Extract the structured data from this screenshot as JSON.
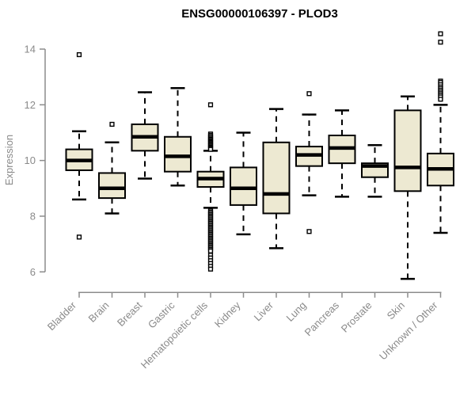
{
  "colors": {
    "box_fill": "#EDE9D2",
    "box_stroke": "#000000",
    "median": "#000000",
    "whisker": "#000000",
    "axis": "#8c8c8c",
    "tick_text": "#8a8a8a",
    "title_text": "#000000",
    "background": "#ffffff"
  },
  "chart_data": {
    "type": "boxplot",
    "title": "ENSG00000106397 - PLOD3",
    "xlabel": "",
    "ylabel": "Expression",
    "yticks": [
      6,
      8,
      10,
      12,
      14
    ],
    "ylim": [
      5.5,
      14.8
    ],
    "grid": false,
    "legend": "none",
    "categories": [
      "Bladder",
      "Brain",
      "Breast",
      "Gastric",
      "Hematopoietic cells",
      "Kidney",
      "Liver",
      "Lung",
      "Pancreas",
      "Prostate",
      "Skin",
      "Unknown / Other"
    ],
    "boxes": [
      {
        "category": "Bladder",
        "whisker_low": 8.6,
        "q1": 9.65,
        "median": 10.0,
        "q3": 10.4,
        "whisker_high": 11.05,
        "outliers": [
          13.8,
          7.25
        ]
      },
      {
        "category": "Brain",
        "whisker_low": 8.1,
        "q1": 8.65,
        "median": 9.0,
        "q3": 9.55,
        "whisker_high": 10.65,
        "outliers": [
          11.3
        ]
      },
      {
        "category": "Breast",
        "whisker_low": 9.35,
        "q1": 10.35,
        "median": 10.85,
        "q3": 11.3,
        "whisker_high": 12.45,
        "outliers": []
      },
      {
        "category": "Gastric",
        "whisker_low": 9.1,
        "q1": 9.6,
        "median": 10.15,
        "q3": 10.85,
        "whisker_high": 12.6,
        "outliers": []
      },
      {
        "category": "Hematopoietic cells",
        "whisker_low": 8.3,
        "q1": 9.05,
        "median": 9.35,
        "q3": 9.6,
        "whisker_high": 10.35,
        "outliers": [
          12.0,
          10.95,
          10.9,
          10.85,
          10.8,
          10.76,
          10.72,
          10.68,
          10.64,
          10.6,
          10.56,
          10.52,
          10.48,
          10.44,
          10.4,
          8.2,
          8.15,
          8.1,
          8.05,
          8.0,
          7.95,
          7.9,
          7.85,
          7.8,
          7.75,
          7.7,
          7.65,
          7.6,
          7.55,
          7.5,
          7.45,
          7.4,
          7.35,
          7.3,
          7.25,
          7.2,
          7.15,
          7.1,
          7.05,
          7.0,
          6.95,
          6.9,
          6.85,
          6.8,
          6.75,
          6.6,
          6.5,
          6.4,
          6.3,
          6.2,
          6.1
        ]
      },
      {
        "category": "Kidney",
        "whisker_low": 7.35,
        "q1": 8.4,
        "median": 9.0,
        "q3": 9.75,
        "whisker_high": 11.0,
        "outliers": []
      },
      {
        "category": "Liver",
        "whisker_low": 6.85,
        "q1": 8.1,
        "median": 8.8,
        "q3": 10.65,
        "whisker_high": 11.85,
        "outliers": []
      },
      {
        "category": "Lung",
        "whisker_low": 8.75,
        "q1": 9.8,
        "median": 10.2,
        "q3": 10.5,
        "whisker_high": 11.65,
        "outliers": [
          12.4,
          7.45
        ]
      },
      {
        "category": "Pancreas",
        "whisker_low": 8.7,
        "q1": 9.9,
        "median": 10.45,
        "q3": 10.9,
        "whisker_high": 11.8,
        "outliers": []
      },
      {
        "category": "Prostate",
        "whisker_low": 8.7,
        "q1": 9.4,
        "median": 9.8,
        "q3": 9.9,
        "whisker_high": 10.55,
        "outliers": []
      },
      {
        "category": "Skin",
        "whisker_low": 5.75,
        "q1": 8.9,
        "median": 9.75,
        "q3": 11.8,
        "whisker_high": 12.3,
        "outliers": []
      },
      {
        "category": "Unknown / Other",
        "whisker_low": 7.4,
        "q1": 9.1,
        "median": 9.7,
        "q3": 10.25,
        "whisker_high": 12.0,
        "outliers": [
          14.55,
          14.25,
          12.85,
          12.8,
          12.72,
          12.64,
          12.58,
          12.52,
          12.46,
          12.4,
          12.34,
          12.28,
          12.2
        ]
      }
    ]
  }
}
